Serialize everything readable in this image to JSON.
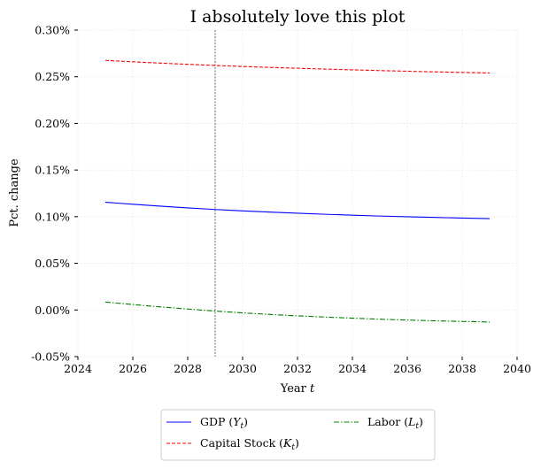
{
  "chart_data": {
    "type": "line",
    "title": "I absolutely love this plot",
    "xlabel_text": "Year ",
    "xlabel_var": "t",
    "ylabel": "Pct. change",
    "xlim": [
      2024,
      2040
    ],
    "ylim": [
      -0.05,
      0.3
    ],
    "xticks": [
      "2024",
      "2026",
      "2028",
      "2030",
      "2032",
      "2034",
      "2036",
      "2038",
      "2040"
    ],
    "yticks": [
      "-0.05%",
      "0.00%",
      "0.05%",
      "0.10%",
      "0.15%",
      "0.20%",
      "0.25%",
      "0.30%"
    ],
    "grid": true,
    "vline_x": 2029,
    "legend_position": "bottom-center-outside",
    "x": [
      2025,
      2026,
      2027,
      2028,
      2029,
      2030,
      2031,
      2032,
      2033,
      2034,
      2035,
      2036,
      2037,
      2038,
      2039
    ],
    "series": [
      {
        "label_main": "GDP (",
        "label_var": "Y",
        "label_sub": "t",
        "label_end": ")",
        "color": "#0000ff",
        "dash": "solid",
        "values": [
          0.1155,
          0.1133,
          0.1113,
          0.1094,
          0.1077,
          0.1062,
          0.1049,
          0.1037,
          0.1026,
          0.1016,
          0.1007,
          0.0999,
          0.0992,
          0.0985,
          0.0979
        ]
      },
      {
        "label_main": "Capital Stock (",
        "label_var": "K",
        "label_sub": "t",
        "label_end": ")",
        "color": "#ff0000",
        "dash": "dashed",
        "values": [
          0.2675,
          0.266,
          0.2646,
          0.2633,
          0.2621,
          0.261,
          0.26,
          0.2591,
          0.2582,
          0.2574,
          0.2566,
          0.2559,
          0.2552,
          0.2546,
          0.254
        ]
      },
      {
        "label_main": "Labor (",
        "label_var": "L",
        "label_sub": "t",
        "label_end": ")",
        "color": "#008000",
        "dash": "dashdot",
        "values": [
          0.0085,
          0.0058,
          0.0033,
          0.001,
          -0.0012,
          -0.0031,
          -0.0048,
          -0.0063,
          -0.0076,
          -0.0088,
          -0.0099,
          -0.0108,
          -0.0116,
          -0.0123,
          -0.0129
        ]
      }
    ]
  }
}
